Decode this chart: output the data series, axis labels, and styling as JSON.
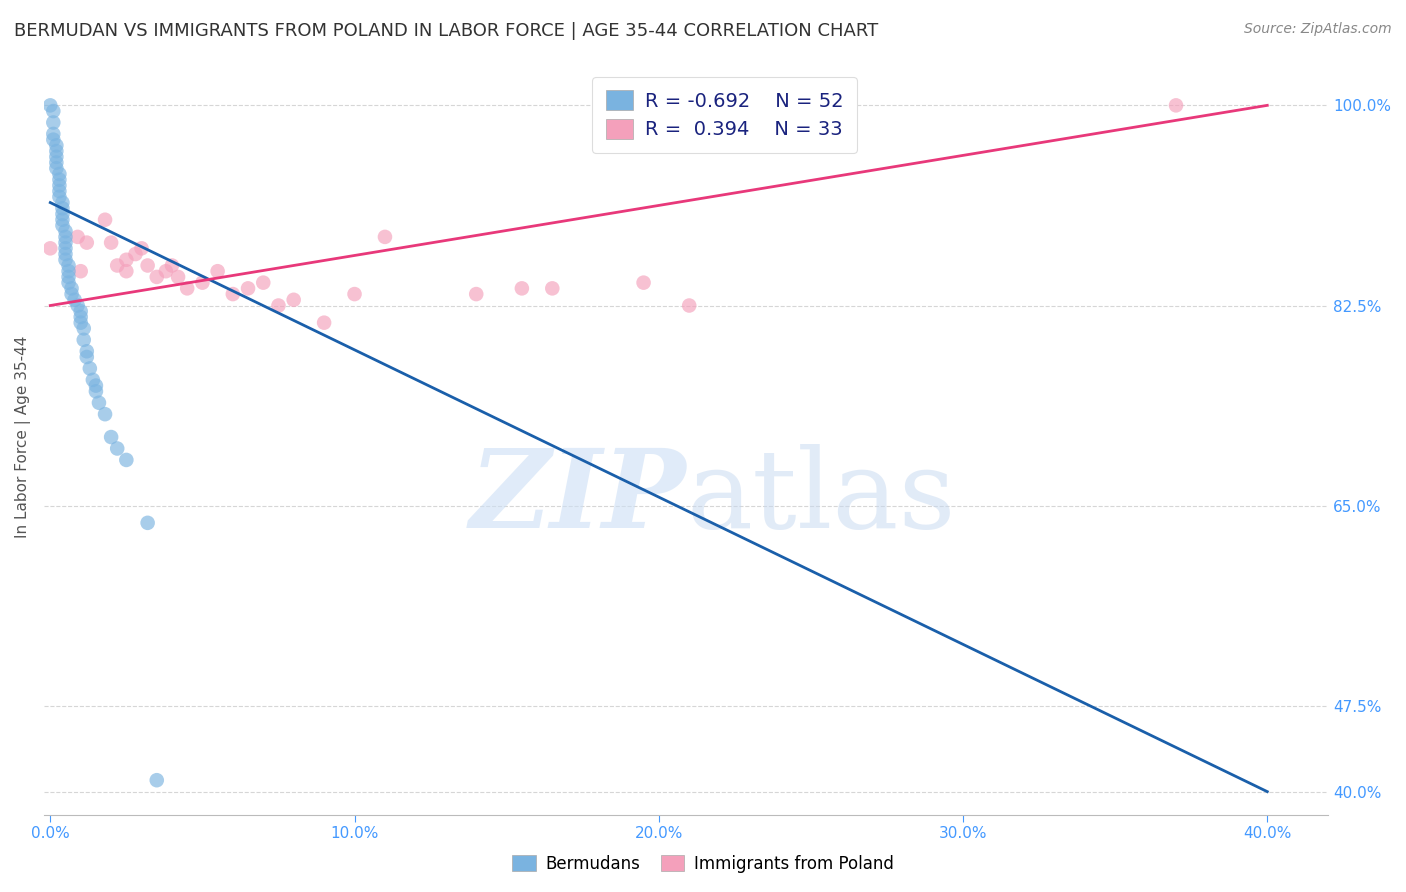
{
  "title": "BERMUDAN VS IMMIGRANTS FROM POLAND IN LABOR FORCE | AGE 35-44 CORRELATION CHART",
  "source": "Source: ZipAtlas.com",
  "ylabel_label": "In Labor Force | Age 35-44",
  "x_min": -0.002,
  "x_max": 0.42,
  "y_min": 38.0,
  "y_max": 104.0,
  "legend_blue_R": "-0.692",
  "legend_blue_N": "52",
  "legend_pink_R": "0.394",
  "legend_pink_N": "33",
  "blue_color": "#7ab3e0",
  "pink_color": "#f4a0bb",
  "blue_line_color": "#1a5faa",
  "pink_line_color": "#e8387a",
  "blue_scatter": [
    [
      0.0,
      100.0
    ],
    [
      0.001,
      99.5
    ],
    [
      0.001,
      98.5
    ],
    [
      0.001,
      97.5
    ],
    [
      0.001,
      97.0
    ],
    [
      0.002,
      96.5
    ],
    [
      0.002,
      96.0
    ],
    [
      0.002,
      95.5
    ],
    [
      0.002,
      95.0
    ],
    [
      0.002,
      94.5
    ],
    [
      0.003,
      94.0
    ],
    [
      0.003,
      93.5
    ],
    [
      0.003,
      93.0
    ],
    [
      0.003,
      92.5
    ],
    [
      0.003,
      92.0
    ],
    [
      0.004,
      91.5
    ],
    [
      0.004,
      91.0
    ],
    [
      0.004,
      90.5
    ],
    [
      0.004,
      90.0
    ],
    [
      0.004,
      89.5
    ],
    [
      0.005,
      89.0
    ],
    [
      0.005,
      88.5
    ],
    [
      0.005,
      88.0
    ],
    [
      0.005,
      87.5
    ],
    [
      0.005,
      87.0
    ],
    [
      0.005,
      86.5
    ],
    [
      0.006,
      86.0
    ],
    [
      0.006,
      85.5
    ],
    [
      0.006,
      85.0
    ],
    [
      0.006,
      84.5
    ],
    [
      0.007,
      84.0
    ],
    [
      0.007,
      83.5
    ],
    [
      0.008,
      83.0
    ],
    [
      0.009,
      82.5
    ],
    [
      0.01,
      82.0
    ],
    [
      0.01,
      81.5
    ],
    [
      0.01,
      81.0
    ],
    [
      0.011,
      80.5
    ],
    [
      0.011,
      79.5
    ],
    [
      0.012,
      78.5
    ],
    [
      0.012,
      78.0
    ],
    [
      0.013,
      77.0
    ],
    [
      0.014,
      76.0
    ],
    [
      0.015,
      75.5
    ],
    [
      0.015,
      75.0
    ],
    [
      0.016,
      74.0
    ],
    [
      0.018,
      73.0
    ],
    [
      0.02,
      71.0
    ],
    [
      0.022,
      70.0
    ],
    [
      0.025,
      69.0
    ],
    [
      0.032,
      63.5
    ],
    [
      0.035,
      41.0
    ]
  ],
  "pink_scatter": [
    [
      0.0,
      87.5
    ],
    [
      0.009,
      88.5
    ],
    [
      0.01,
      85.5
    ],
    [
      0.012,
      88.0
    ],
    [
      0.018,
      90.0
    ],
    [
      0.02,
      88.0
    ],
    [
      0.022,
      86.0
    ],
    [
      0.025,
      86.5
    ],
    [
      0.025,
      85.5
    ],
    [
      0.028,
      87.0
    ],
    [
      0.03,
      87.5
    ],
    [
      0.032,
      86.0
    ],
    [
      0.035,
      85.0
    ],
    [
      0.038,
      85.5
    ],
    [
      0.04,
      86.0
    ],
    [
      0.042,
      85.0
    ],
    [
      0.045,
      84.0
    ],
    [
      0.05,
      84.5
    ],
    [
      0.055,
      85.5
    ],
    [
      0.06,
      83.5
    ],
    [
      0.065,
      84.0
    ],
    [
      0.07,
      84.5
    ],
    [
      0.075,
      82.5
    ],
    [
      0.08,
      83.0
    ],
    [
      0.09,
      81.0
    ],
    [
      0.1,
      83.5
    ],
    [
      0.11,
      88.5
    ],
    [
      0.14,
      83.5
    ],
    [
      0.155,
      84.0
    ],
    [
      0.165,
      84.0
    ],
    [
      0.195,
      84.5
    ],
    [
      0.21,
      82.5
    ],
    [
      0.37,
      100.0
    ]
  ],
  "blue_line_x": [
    0.0,
    0.4
  ],
  "blue_line_y": [
    91.5,
    40.0
  ],
  "pink_line_x": [
    0.0,
    0.4
  ],
  "pink_line_y": [
    82.5,
    100.0
  ],
  "ytick_positions": [
    40.0,
    47.5,
    65.0,
    82.5,
    100.0
  ],
  "ytick_labels": [
    "40.0%",
    "47.5%",
    "65.0%",
    "82.5%",
    "100.0%"
  ],
  "xtick_positions": [
    0.0,
    0.1,
    0.2,
    0.3,
    0.4
  ],
  "xtick_labels": [
    "0.0%",
    "10.0%",
    "20.0%",
    "30.0%",
    "40.0%"
  ],
  "grid_color": "#cccccc",
  "axis_tick_color": "#4499ff",
  "legend_fontsize": 14,
  "title_fontsize": 13,
  "scatter_size": 110
}
